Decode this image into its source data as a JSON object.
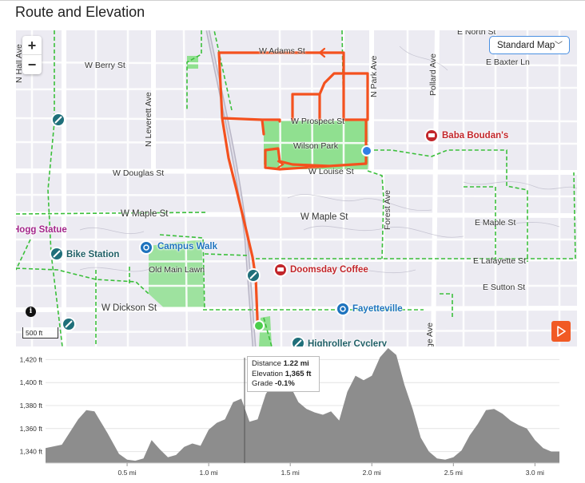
{
  "page": {
    "title": "Route and Elevation"
  },
  "map": {
    "zoom_in": "+",
    "zoom_out": "−",
    "map_type": "Standard Map",
    "scale": "500 ft",
    "info": "i",
    "streets": {
      "w_adams": "W Adams St",
      "w_berry": "W Berry St",
      "e_baxter": "E Baxter Ln",
      "e_north": "E North St",
      "w_prospect": "W Prospect St",
      "w_louise": "W Louise St",
      "w_douglas": "W Douglas St",
      "w_maple_left": "W Maple St",
      "w_maple_center": "W Maple St",
      "e_maple": "E Maple St",
      "e_lafayette": "E Lafayette St",
      "e_sutton": "E Sutton St",
      "w_dickson": "W Dickson St",
      "wilson_park": "Wilson Park",
      "old_main_lawn": "Old Main Lawn",
      "n_leverett": "N Leverett Ave",
      "n_park": "N Park Ave",
      "pollard": "Pollard Ave",
      "forest": "Forest Ave",
      "n_hall": "N Hall Ave",
      "ge_ave": "ge Ave"
    },
    "pois": {
      "baba_boudans": "Baba Boudan's",
      "campus_walk": "Campus Walk",
      "doomsday_coffee": "Doomsday Coffee",
      "fayetteville": "Fayetteville",
      "bike_station": "Bike Station",
      "hogg_statue": "Hogg Statue",
      "highroller": "Highroller Cyclery"
    },
    "colors": {
      "route": "#f4511e",
      "trail": "#3bbf3b",
      "park": "#8fe08f",
      "start": "#4ccd4c",
      "end": "#2f7fe6"
    }
  },
  "elevation": {
    "tooltip": {
      "distance_label": "Distance",
      "distance_value": "1.22 mi",
      "elevation_label": "Elevation",
      "elevation_value": "1,365 ft",
      "grade_label": "Grade",
      "grade_value": "-0.1%"
    },
    "y_ticks": [
      "1,420 ft",
      "1,400 ft",
      "1,380 ft",
      "1,360 ft",
      "1,340 ft"
    ],
    "x_ticks": [
      "0.5 mi",
      "1.0 mi",
      "1.5 mi",
      "2.0 mi",
      "2.5 mi",
      "3.0 mi"
    ]
  },
  "chart_data": {
    "type": "area",
    "title": "",
    "xlabel": "",
    "ylabel": "",
    "x_unit": "mi",
    "y_unit": "ft",
    "xlim": [
      0,
      3.15
    ],
    "ylim": [
      1330,
      1430
    ],
    "grid": true,
    "cursor_x": 1.22,
    "x": [
      0,
      0.1,
      0.2,
      0.25,
      0.3,
      0.38,
      0.45,
      0.5,
      0.55,
      0.6,
      0.65,
      0.7,
      0.75,
      0.8,
      0.85,
      0.9,
      0.95,
      1.0,
      1.05,
      1.1,
      1.15,
      1.2,
      1.25,
      1.3,
      1.35,
      1.4,
      1.45,
      1.5,
      1.55,
      1.6,
      1.65,
      1.7,
      1.75,
      1.8,
      1.85,
      1.9,
      1.95,
      2.0,
      2.05,
      2.1,
      2.15,
      2.2,
      2.25,
      2.3,
      2.35,
      2.4,
      2.45,
      2.5,
      2.55,
      2.6,
      2.65,
      2.7,
      2.75,
      2.8,
      2.85,
      2.9,
      2.95,
      3.0,
      3.05,
      3.1,
      3.15
    ],
    "y": [
      1343,
      1346,
      1368,
      1376,
      1375,
      1356,
      1338,
      1333,
      1332,
      1334,
      1350,
      1342,
      1335,
      1337,
      1344,
      1347,
      1345,
      1359,
      1365,
      1368,
      1383,
      1386,
      1366,
      1368,
      1390,
      1401,
      1403,
      1397,
      1383,
      1377,
      1374,
      1372,
      1375,
      1367,
      1392,
      1406,
      1402,
      1406,
      1422,
      1430,
      1424,
      1398,
      1377,
      1352,
      1340,
      1334,
      1333,
      1335,
      1341,
      1354,
      1364,
      1376,
      1377,
      1373,
      1367,
      1363,
      1360,
      1350,
      1343,
      1340,
      1340
    ]
  }
}
